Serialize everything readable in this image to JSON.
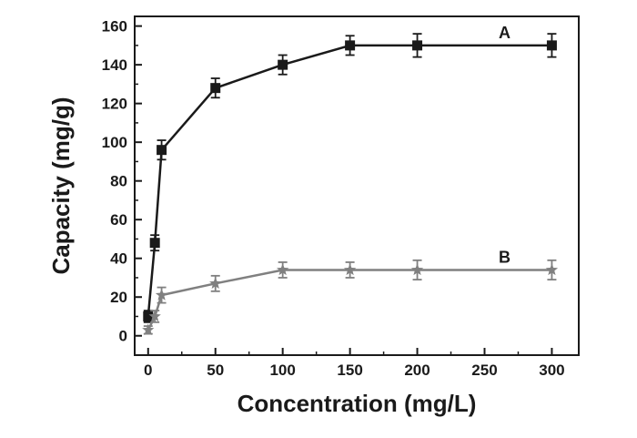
{
  "chart_data": {
    "type": "line",
    "title": "",
    "xlabel": "Concentration (mg/L)",
    "ylabel": "Capacity (mg/g)",
    "xlim": [
      -10,
      320
    ],
    "ylim": [
      -10,
      165
    ],
    "xticks": [
      0,
      50,
      100,
      150,
      200,
      250,
      300
    ],
    "yticks": [
      0,
      20,
      40,
      60,
      80,
      100,
      120,
      140,
      160
    ],
    "grid": false,
    "legend": "none",
    "series": [
      {
        "name": "A",
        "color": "#1a1a1a",
        "marker": "square",
        "x": [
          0,
          5,
          10,
          50,
          100,
          150,
          200,
          300
        ],
        "y": [
          10,
          48,
          96,
          128,
          140,
          150,
          150,
          150
        ],
        "err": [
          3,
          4,
          5,
          5,
          5,
          5,
          6,
          6
        ]
      },
      {
        "name": "B",
        "color": "#808080",
        "marker": "star",
        "x": [
          0,
          5,
          10,
          50,
          100,
          150,
          200,
          300
        ],
        "y": [
          3,
          10,
          21,
          27,
          34,
          34,
          34,
          34
        ],
        "err": [
          2,
          3,
          4,
          4,
          4,
          4,
          5,
          5
        ]
      }
    ]
  }
}
